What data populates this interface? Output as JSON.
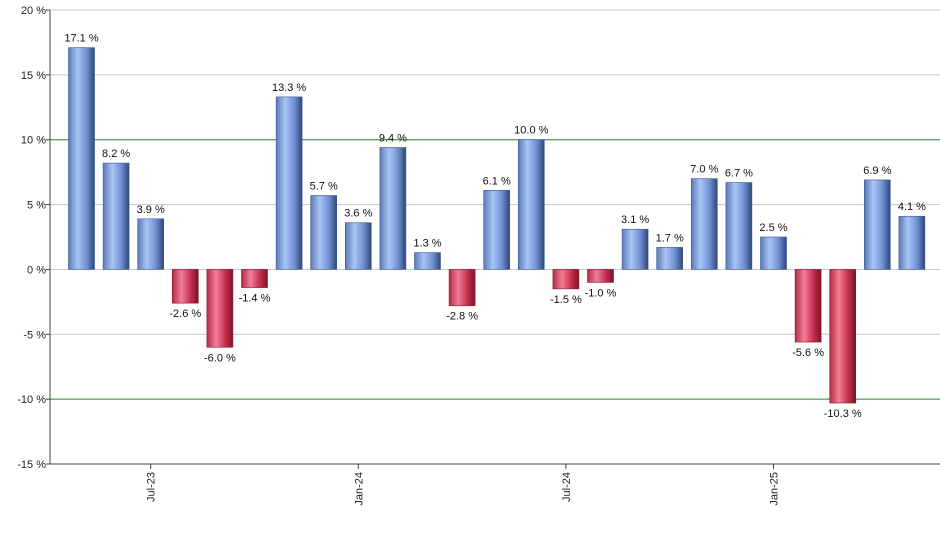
{
  "chart_data": {
    "type": "bar",
    "title": "",
    "xlabel": "",
    "ylabel": "",
    "ylim": [
      -15,
      20
    ],
    "yticks": [
      20,
      15,
      10,
      5,
      0,
      -5,
      -10,
      -15
    ],
    "ytick_labels": [
      "20 %",
      "15 %",
      "10 %",
      "5 %",
      "0 %",
      "-5 %",
      "-10 %",
      "-15 %"
    ],
    "reference_lines": [
      10,
      -10
    ],
    "values": [
      17.1,
      8.2,
      3.9,
      -2.6,
      -6.0,
      -1.4,
      13.3,
      5.7,
      3.6,
      9.4,
      1.3,
      -2.8,
      6.1,
      10.0,
      -1.5,
      -1.0,
      3.1,
      1.7,
      7.0,
      6.7,
      2.5,
      -5.6,
      -10.3,
      6.9,
      4.1
    ],
    "value_labels": [
      "17.1 %",
      "8.2 %",
      "3.9 %",
      "-2.6 %",
      "-6.0 %",
      "-1.4 %",
      "13.3 %",
      "5.7 %",
      "3.6 %",
      "9.4 %",
      "1.3 %",
      "-2.8 %",
      "6.1 %",
      "10.0 %",
      "-1.5 %",
      "-1.0 %",
      "3.1 %",
      "1.7 %",
      "7.0 %",
      "6.7 %",
      "2.5 %",
      "-5.6 %",
      "-10.3 %",
      "6.9 %",
      "4.1 %"
    ],
    "x_tick_labels": [
      {
        "index": 2,
        "label": "Jul-23"
      },
      {
        "index": 8,
        "label": "Jan-24"
      },
      {
        "index": 14,
        "label": "Jul-24"
      },
      {
        "index": 20,
        "label": "Jan-25"
      }
    ],
    "positive_color": "#7fa6e6",
    "negative_color": "#c8304f"
  }
}
